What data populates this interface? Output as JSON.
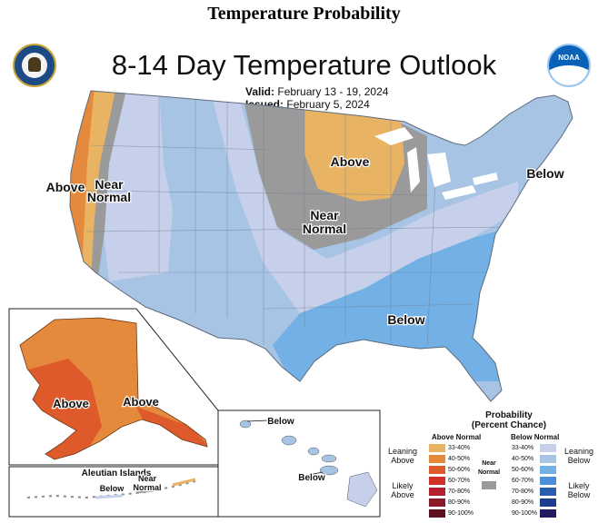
{
  "header": {
    "page_title": "Temperature Probability"
  },
  "map": {
    "title": "8-14 Day Temperature Outlook",
    "valid_label": "Valid:",
    "valid_dates": "February 13 - 19, 2024",
    "issued_label": "Issued:",
    "issued_date": "February 5, 2024"
  },
  "region_labels": {
    "west_above": "Above",
    "west_near_1": "Near",
    "west_near_2": "Normal",
    "north_above": "Above",
    "central_near_1": "Near",
    "central_near_2": "Normal",
    "northeast_below": "Below",
    "southeast_below": "Below",
    "alaska_above_west": "Above",
    "alaska_above_south": "Above",
    "aleutian_title": "Aleutian Islands",
    "aleutian_below": "Below",
    "aleutian_near_1": "Near",
    "aleutian_near_2": "Normal",
    "hawaii_below_top": "Below",
    "hawaii_below_bottom": "Below"
  },
  "legend": {
    "title_1": "Probability",
    "title_2": "(Percent Chance)",
    "above_header": "Above Normal",
    "below_header": "Below Normal",
    "leaning_above_1": "Leaning",
    "leaning_above_2": "Above",
    "likely_above_1": "Likely",
    "likely_above_2": "Above",
    "near_1": "Near",
    "near_2": "Normal",
    "leaning_below_1": "Leaning",
    "leaning_below_2": "Below",
    "likely_below_1": "Likely",
    "likely_below_2": "Below",
    "above_items": [
      {
        "label": "33-40%",
        "color": "#e8b464"
      },
      {
        "label": "40-50%",
        "color": "#e58a3c"
      },
      {
        "label": "50-60%",
        "color": "#df5a2a"
      },
      {
        "label": "60-70%",
        "color": "#d1302a"
      },
      {
        "label": "70-80%",
        "color": "#b32131"
      },
      {
        "label": "80-90%",
        "color": "#8a1a2a"
      },
      {
        "label": "90-100%",
        "color": "#5e1220"
      }
    ],
    "below_items": [
      {
        "label": "33-40%",
        "color": "#c6d0ea"
      },
      {
        "label": "40-50%",
        "color": "#a8c4e4"
      },
      {
        "label": "50-60%",
        "color": "#72b0e6"
      },
      {
        "label": "60-70%",
        "color": "#4d8fd6"
      },
      {
        "label": "70-80%",
        "color": "#2a5cb0"
      },
      {
        "label": "80-90%",
        "color": "#1c3c8c"
      },
      {
        "label": "90-100%",
        "color": "#221a60"
      }
    ],
    "near_color": "#9a9a9a"
  }
}
